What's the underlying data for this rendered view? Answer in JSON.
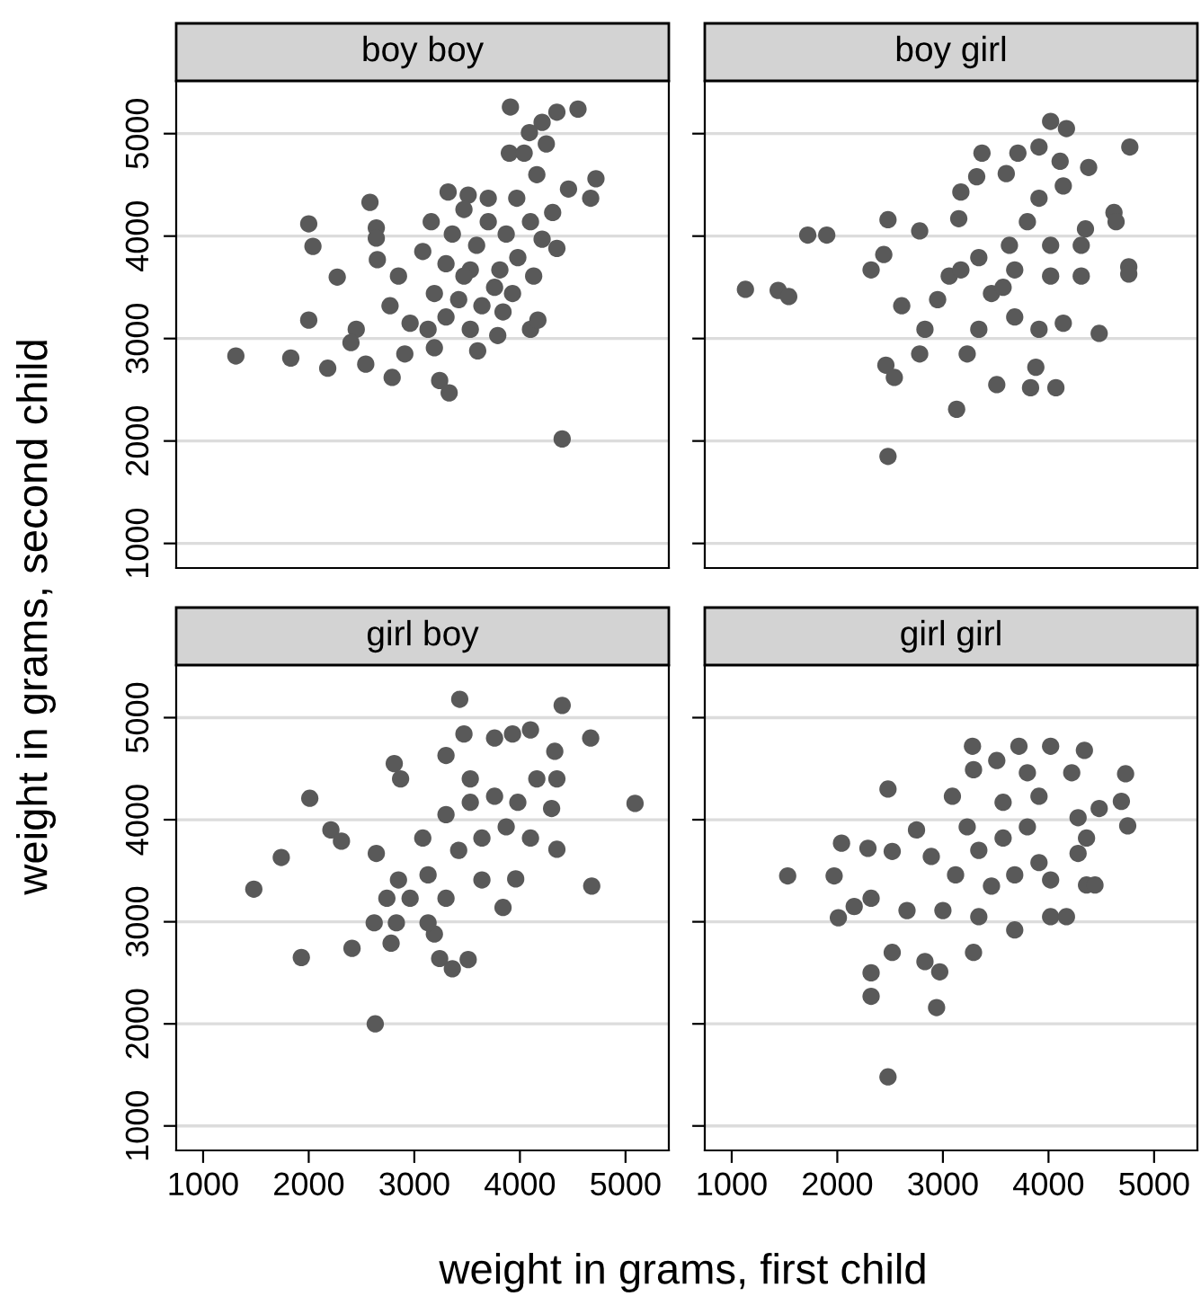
{
  "chart_data": [
    {
      "type": "scatter",
      "title": "boy boy",
      "ylabel": "weight in grams, second child",
      "xlim": [
        745,
        5410
      ],
      "ylim": [
        760,
        5515
      ],
      "xticks": [
        1000,
        2000,
        3000,
        4000,
        5000
      ],
      "yticks": [
        1000,
        2000,
        3000,
        4000,
        5000
      ],
      "tick_labels": "y",
      "grid": "y",
      "marker": "circle",
      "series": [
        {
          "color": "#595959",
          "x": [
            1310,
            1830,
            2180,
            2000,
            2000,
            2040,
            2270,
            2580,
            2640,
            2640,
            2650,
            2450,
            2400,
            2540,
            2790,
            2770,
            3240,
            3330,
            4400,
            3910,
            4550,
            4350,
            4210,
            4090,
            3900,
            4040,
            4250,
            4720,
            4670,
            4460,
            4160,
            4350,
            4100,
            4170,
            3600,
            3790,
            3840,
            3160,
            3320,
            3510,
            3700,
            4310,
            4130,
            3970,
            3530,
            3080,
            3190,
            3420,
            3640,
            3810,
            3870,
            3700,
            3360,
            3470,
            2850,
            2960,
            3130,
            2910,
            3190,
            3300,
            3530,
            3980,
            4210,
            4100,
            3590,
            3300,
            3760,
            3930,
            3470
          ],
          "values": [
            2830,
            2810,
            2710,
            3180,
            4120,
            3900,
            3600,
            4330,
            4080,
            3980,
            3770,
            3090,
            2960,
            2750,
            2620,
            3320,
            2590,
            2470,
            2020,
            5260,
            5240,
            5210,
            5110,
            5010,
            4810,
            4810,
            4900,
            4560,
            4370,
            4460,
            4600,
            3880,
            3090,
            3180,
            2880,
            3030,
            3260,
            4140,
            4430,
            4400,
            4370,
            4230,
            3610,
            4370,
            3670,
            3850,
            3440,
            3380,
            3320,
            3670,
            4020,
            4140,
            4020,
            3610,
            3610,
            3150,
            3090,
            2850,
            2910,
            3210,
            3090,
            3790,
            3970,
            4140,
            3910,
            3730,
            3500,
            3440,
            4260
          ]
        }
      ]
    },
    {
      "type": "scatter",
      "title": "boy girl",
      "xlim": [
        745,
        5410
      ],
      "ylim": [
        760,
        5515
      ],
      "xticks": [
        1000,
        2000,
        3000,
        4000,
        5000
      ],
      "yticks": [
        1000,
        2000,
        3000,
        4000,
        5000
      ],
      "tick_labels": false,
      "grid": "y",
      "marker": "circle",
      "series": [
        {
          "color": "#595959",
          "x": [
            1130,
            1440,
            1540,
            1900,
            1720,
            2480,
            2780,
            3150,
            2440,
            2320,
            2460,
            2540,
            3130,
            2480,
            3510,
            3830,
            4070,
            3880,
            4140,
            4480,
            4770,
            4020,
            4170,
            3370,
            3710,
            3910,
            4110,
            4380,
            4620,
            4640,
            4760,
            4760,
            4350,
            4310,
            4310,
            3320,
            3170,
            3600,
            2780,
            3230,
            2830,
            2610,
            3060,
            3340,
            3630,
            3800,
            3910,
            3460,
            3680,
            3910,
            2950,
            3340,
            4020,
            3570,
            3170,
            3680,
            4020,
            4140
          ],
          "values": [
            3480,
            3470,
            3410,
            4010,
            4010,
            4160,
            4050,
            4170,
            3820,
            3670,
            2740,
            2620,
            2310,
            1850,
            2550,
            2520,
            2520,
            2720,
            3150,
            3050,
            4870,
            5120,
            5050,
            4810,
            4810,
            4870,
            4730,
            4670,
            4230,
            4140,
            3700,
            3630,
            4070,
            3910,
            3610,
            4580,
            4430,
            4610,
            2850,
            2850,
            3090,
            3320,
            3610,
            3790,
            3910,
            4140,
            4370,
            3440,
            3210,
            3090,
            3380,
            3090,
            3610,
            3500,
            3670,
            3670,
            3910,
            4490
          ]
        }
      ]
    },
    {
      "type": "scatter",
      "title": "girl boy",
      "xlim": [
        745,
        5410
      ],
      "ylim": [
        760,
        5515
      ],
      "xticks": [
        1000,
        2000,
        3000,
        4000,
        5000
      ],
      "yticks": [
        1000,
        2000,
        3000,
        4000,
        5000
      ],
      "grid": "y",
      "marker": "circle",
      "series": [
        {
          "color": "#595959",
          "x": [
            1480,
            1740,
            1930,
            2010,
            2210,
            2310,
            2410,
            2630,
            2640,
            2780,
            2620,
            2830,
            2810,
            2870,
            3430,
            4400,
            4670,
            5090,
            4680,
            3960,
            3240,
            3360,
            3510,
            3190,
            3470,
            3760,
            3930,
            4100,
            4330,
            4160,
            4350,
            4300,
            4350,
            3300,
            3840,
            3080,
            3300,
            3530,
            3760,
            3420,
            3130,
            3640,
            3870,
            4100,
            2850,
            2960,
            3300,
            3640,
            3130,
            2740,
            3530,
            3980
          ],
          "values": [
            3320,
            3630,
            2650,
            4210,
            3900,
            3790,
            2740,
            2000,
            3670,
            2790,
            2990,
            2990,
            4550,
            4400,
            5180,
            5120,
            4800,
            4160,
            3350,
            3420,
            2640,
            2540,
            2630,
            2880,
            4840,
            4800,
            4840,
            4880,
            4670,
            4400,
            4400,
            4110,
            3710,
            4630,
            3140,
            3820,
            4050,
            4170,
            4230,
            3700,
            3460,
            3820,
            3930,
            3820,
            3410,
            3230,
            3230,
            3410,
            2990,
            3230,
            4400,
            4170
          ]
        }
      ]
    },
    {
      "type": "scatter",
      "title": "girl girl",
      "xlabel": "weight in grams, first child",
      "xlim": [
        745,
        5410
      ],
      "ylim": [
        760,
        5515
      ],
      "xticks": [
        1000,
        2000,
        3000,
        4000,
        5000
      ],
      "yticks": [
        1000,
        2000,
        3000,
        4000,
        5000
      ],
      "tick_labels": "x",
      "grid": "y",
      "marker": "circle",
      "series": [
        {
          "color": "#595959",
          "x": [
            1530,
            1970,
            2040,
            2290,
            2520,
            2480,
            2010,
            2160,
            2320,
            2520,
            2320,
            2320,
            2940,
            2480,
            2830,
            2970,
            3290,
            3680,
            4020,
            4170,
            3280,
            3720,
            4020,
            4340,
            4730,
            4690,
            4750,
            4480,
            4280,
            4220,
            4360,
            4280,
            4360,
            4440,
            2750,
            3090,
            3290,
            3510,
            3800,
            2890,
            3120,
            3340,
            3570,
            3800,
            3910,
            3460,
            3680,
            3910,
            2660,
            3000,
            3340,
            3230,
            4020,
            3570
          ],
          "values": [
            3450,
            3450,
            3770,
            3720,
            3690,
            4300,
            3040,
            3150,
            3230,
            2700,
            2500,
            2270,
            2160,
            1480,
            2610,
            2510,
            2700,
            2920,
            3050,
            3050,
            4720,
            4720,
            4720,
            4680,
            4450,
            4180,
            3940,
            4110,
            4020,
            4460,
            3820,
            3670,
            3360,
            3360,
            3900,
            4230,
            4490,
            4580,
            4460,
            3640,
            3460,
            3700,
            3820,
            3930,
            4230,
            3350,
            3460,
            3580,
            3110,
            3110,
            3050,
            3930,
            3410,
            4170
          ]
        }
      ]
    }
  ]
}
